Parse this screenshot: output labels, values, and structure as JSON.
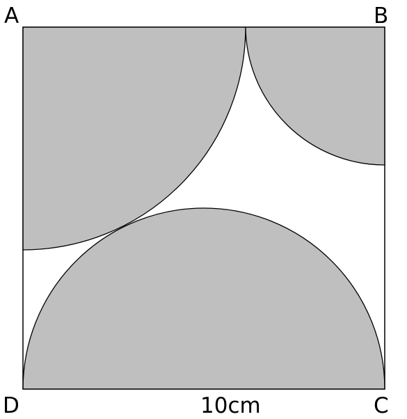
{
  "diagram": {
    "vertices": {
      "a": "A",
      "b": "B",
      "c": "C",
      "d": "D"
    },
    "side_label": "10cm",
    "colors": {
      "fill": "#bfbfbf",
      "stroke": "#000000",
      "background": "#ffffff"
    }
  }
}
